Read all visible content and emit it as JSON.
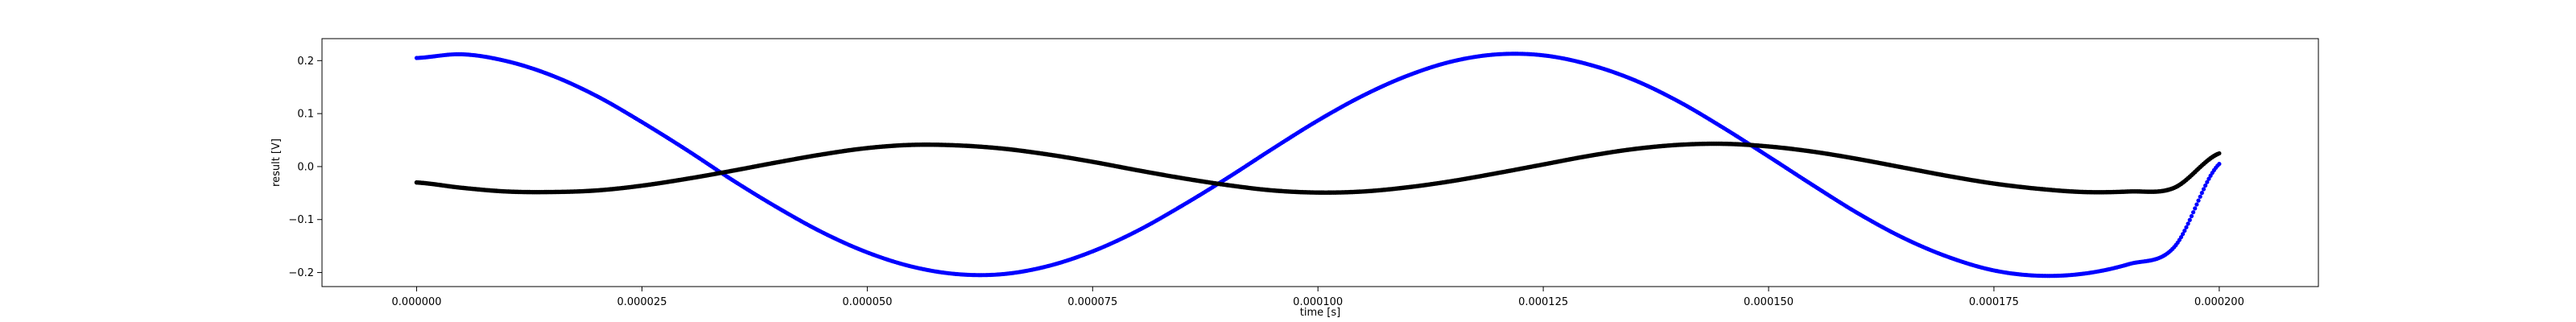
{
  "chart_data": {
    "type": "scatter",
    "title": "",
    "xlabel": "time [s]",
    "ylabel": "result [V]",
    "xlim": [
      -1.05e-05,
      0.000211
    ],
    "ylim": [
      -0.2265,
      0.2415
    ],
    "grid": false,
    "x_ticks": [
      0.0,
      2.5e-05,
      5e-05,
      7.5e-05,
      0.0001,
      0.000125,
      0.00015,
      0.000175,
      0.0002
    ],
    "x_tick_labels": [
      "0.000000",
      "0.000025",
      "0.000050",
      "0.000075",
      "0.000100",
      "0.000125",
      "0.000150",
      "0.000175",
      "0.000200"
    ],
    "y_ticks": [
      -0.2,
      -0.1,
      0.0,
      0.1,
      0.2
    ],
    "y_tick_labels": [
      "−0.2",
      "−0.1",
      "0.0",
      "0.1",
      "0.2"
    ],
    "series": [
      {
        "color": "#0000ff",
        "marker": "dot",
        "points": [
          [
            0.0,
            0.205
          ],
          [
            5e-06,
            0.212
          ],
          [
            1e-05,
            0.199
          ],
          [
            1.5e-05,
            0.172
          ],
          [
            2e-05,
            0.133
          ],
          [
            2.5e-05,
            0.084
          ],
          [
            3e-05,
            0.031
          ],
          [
            3.5e-05,
            -0.025
          ],
          [
            4e-05,
            -0.077
          ],
          [
            4.5e-05,
            -0.124
          ],
          [
            5e-05,
            -0.162
          ],
          [
            5.5e-05,
            -0.189
          ],
          [
            6e-05,
            -0.203
          ],
          [
            6.5e-05,
            -0.203
          ],
          [
            7e-05,
            -0.188
          ],
          [
            7.5e-05,
            -0.16
          ],
          [
            8e-05,
            -0.121
          ],
          [
            8.5e-05,
            -0.073
          ],
          [
            9e-05,
            -0.021
          ],
          [
            9.5e-05,
            0.034
          ],
          [
            0.0001,
            0.087
          ],
          [
            0.000105,
            0.134
          ],
          [
            0.00011,
            0.172
          ],
          [
            0.000115,
            0.199
          ],
          [
            0.00012,
            0.212
          ],
          [
            0.000125,
            0.21
          ],
          [
            0.00013,
            0.193
          ],
          [
            0.000135,
            0.164
          ],
          [
            0.00014,
            0.123
          ],
          [
            0.000145,
            0.073
          ],
          [
            0.00015,
            0.019
          ],
          [
            0.000155,
            -0.036
          ],
          [
            0.00016,
            -0.089
          ],
          [
            0.000165,
            -0.135
          ],
          [
            0.00017,
            -0.171
          ],
          [
            0.000175,
            -0.196
          ],
          [
            0.00018,
            -0.206
          ],
          [
            0.000185,
            -0.202
          ],
          [
            0.00019,
            -0.184
          ],
          [
            0.000195,
            -0.152
          ],
          [
            0.0002,
            0.005
          ]
        ]
      },
      {
        "color": "#000000",
        "marker": "dot",
        "points": [
          [
            0.0,
            -0.03
          ],
          [
            5e-06,
            -0.04
          ],
          [
            1e-05,
            -0.047
          ],
          [
            1.5e-05,
            -0.048
          ],
          [
            2e-05,
            -0.045
          ],
          [
            2.5e-05,
            -0.036
          ],
          [
            3e-05,
            -0.023
          ],
          [
            3.5e-05,
            -0.008
          ],
          [
            4e-05,
            0.008
          ],
          [
            4.5e-05,
            0.023
          ],
          [
            5e-05,
            0.035
          ],
          [
            5.5e-05,
            0.041
          ],
          [
            6e-05,
            0.04
          ],
          [
            6.5e-05,
            0.034
          ],
          [
            7e-05,
            0.023
          ],
          [
            7.5e-05,
            0.009
          ],
          [
            8e-05,
            -0.007
          ],
          [
            8.5e-05,
            -0.022
          ],
          [
            9e-05,
            -0.035
          ],
          [
            9.5e-05,
            -0.045
          ],
          [
            0.0001,
            -0.049
          ],
          [
            0.000105,
            -0.047
          ],
          [
            0.00011,
            -0.039
          ],
          [
            0.000115,
            -0.027
          ],
          [
            0.00012,
            -0.012
          ],
          [
            0.000125,
            0.004
          ],
          [
            0.00013,
            0.02
          ],
          [
            0.000135,
            0.033
          ],
          [
            0.00014,
            0.041
          ],
          [
            0.000145,
            0.043
          ],
          [
            0.00015,
            0.038
          ],
          [
            0.000155,
            0.028
          ],
          [
            0.00016,
            0.014
          ],
          [
            0.000165,
            -0.002
          ],
          [
            0.00017,
            -0.018
          ],
          [
            0.000175,
            -0.032
          ],
          [
            0.00018,
            -0.042
          ],
          [
            0.000185,
            -0.048
          ],
          [
            0.00019,
            -0.047
          ],
          [
            0.000195,
            -0.04
          ],
          [
            0.0002,
            0.025
          ]
        ]
      }
    ]
  }
}
